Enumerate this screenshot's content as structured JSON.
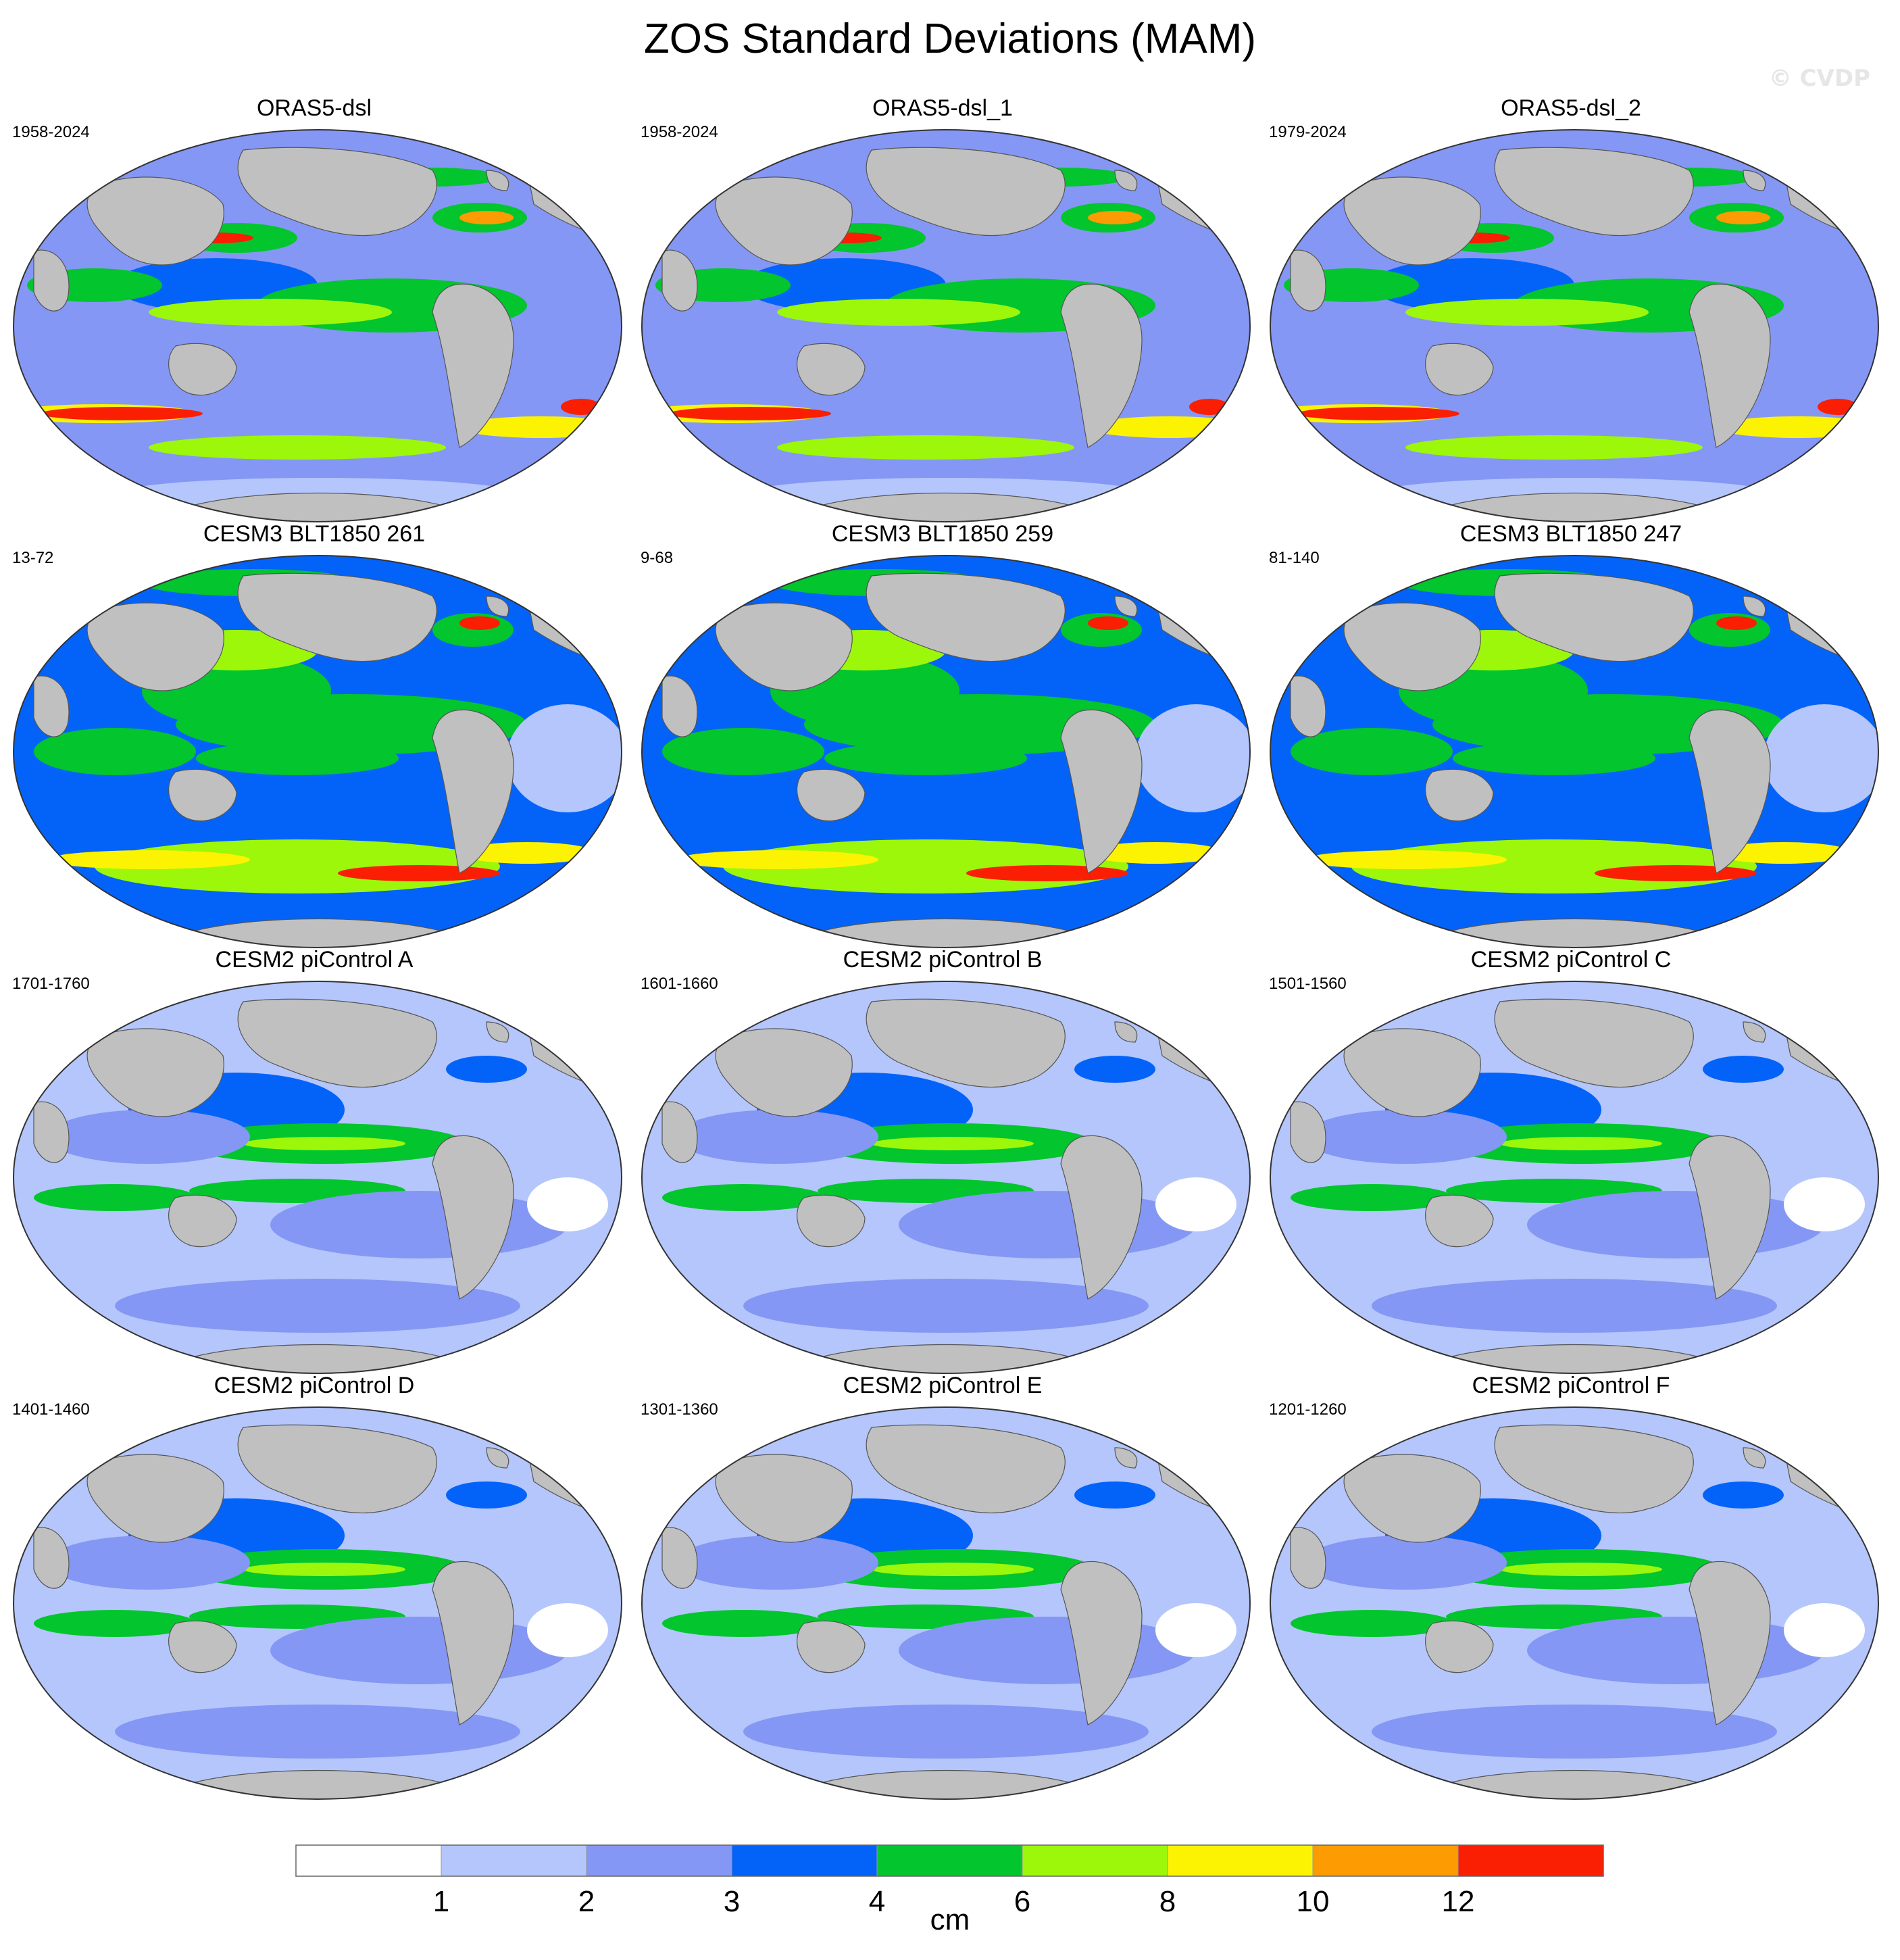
{
  "title": "ZOS Standard Deviations (MAM)",
  "watermark": "© CVDP",
  "panels": [
    {
      "title": "ORAS5-dsl",
      "period": "1958-2024",
      "style": "reanalysis"
    },
    {
      "title": "ORAS5-dsl_1",
      "period": "1958-2024",
      "style": "reanalysis"
    },
    {
      "title": "ORAS5-dsl_2",
      "period": "1979-2024",
      "style": "reanalysis"
    },
    {
      "title": "CESM3 BLT1850 261",
      "period": "13-72",
      "style": "cesm3"
    },
    {
      "title": "CESM3 BLT1850 259",
      "period": "9-68",
      "style": "cesm3"
    },
    {
      "title": "CESM3 BLT1850 247",
      "period": "81-140",
      "style": "cesm3"
    },
    {
      "title": "CESM2 piControl A",
      "period": "1701-1760",
      "style": "cesm2"
    },
    {
      "title": "CESM2 piControl B",
      "period": "1601-1660",
      "style": "cesm2"
    },
    {
      "title": "CESM2 piControl C",
      "period": "1501-1560",
      "style": "cesm2"
    },
    {
      "title": "CESM2 piControl D",
      "period": "1401-1460",
      "style": "cesm2"
    },
    {
      "title": "CESM2 piControl E",
      "period": "1301-1360",
      "style": "cesm2"
    },
    {
      "title": "CESM2 piControl F",
      "period": "1201-1260",
      "style": "cesm2"
    }
  ],
  "colors": {
    "land": "#c0c0c0",
    "outline": "#555555"
  },
  "colorbar": {
    "unit": "cm",
    "levels": [
      "1",
      "2",
      "3",
      "4",
      "6",
      "8",
      "10",
      "12"
    ],
    "colors": [
      "#ffffff",
      "#b4c6fb",
      "#8597f4",
      "#0363f9",
      "#03c52d",
      "#9cf70b",
      "#fcf303",
      "#fc9c02",
      "#fa1e03"
    ]
  }
}
